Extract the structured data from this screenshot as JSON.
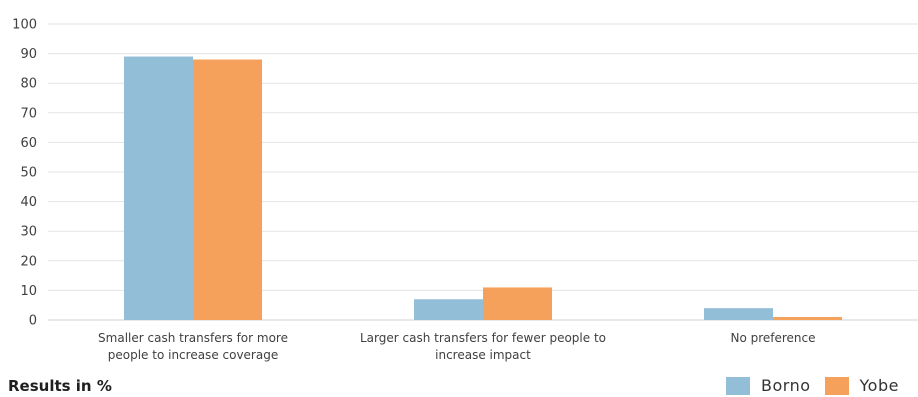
{
  "chart_data": {
    "type": "bar",
    "categories": [
      [
        "Smaller cash transfers for more",
        "people to increase coverage"
      ],
      [
        "Larger cash transfers for fewer people to",
        "increase impact"
      ],
      [
        "No preference"
      ]
    ],
    "series": [
      {
        "name": "Borno",
        "values": [
          89,
          7,
          4
        ],
        "color": "#92BED8"
      },
      {
        "name": "Yobe",
        "values": [
          88,
          11,
          1
        ],
        "color": "#F5A15B"
      }
    ],
    "ylim": [
      0,
      100
    ],
    "yticks": [
      0,
      10,
      20,
      30,
      40,
      50,
      60,
      70,
      80,
      90,
      100
    ],
    "grid": true,
    "legend_position": "bottom-right"
  },
  "footer": {
    "note": "Results in %"
  },
  "legend": {
    "items": [
      {
        "label": "Borno",
        "color": "#92BED8"
      },
      {
        "label": "Yobe",
        "color": "#F5A15B"
      }
    ]
  }
}
